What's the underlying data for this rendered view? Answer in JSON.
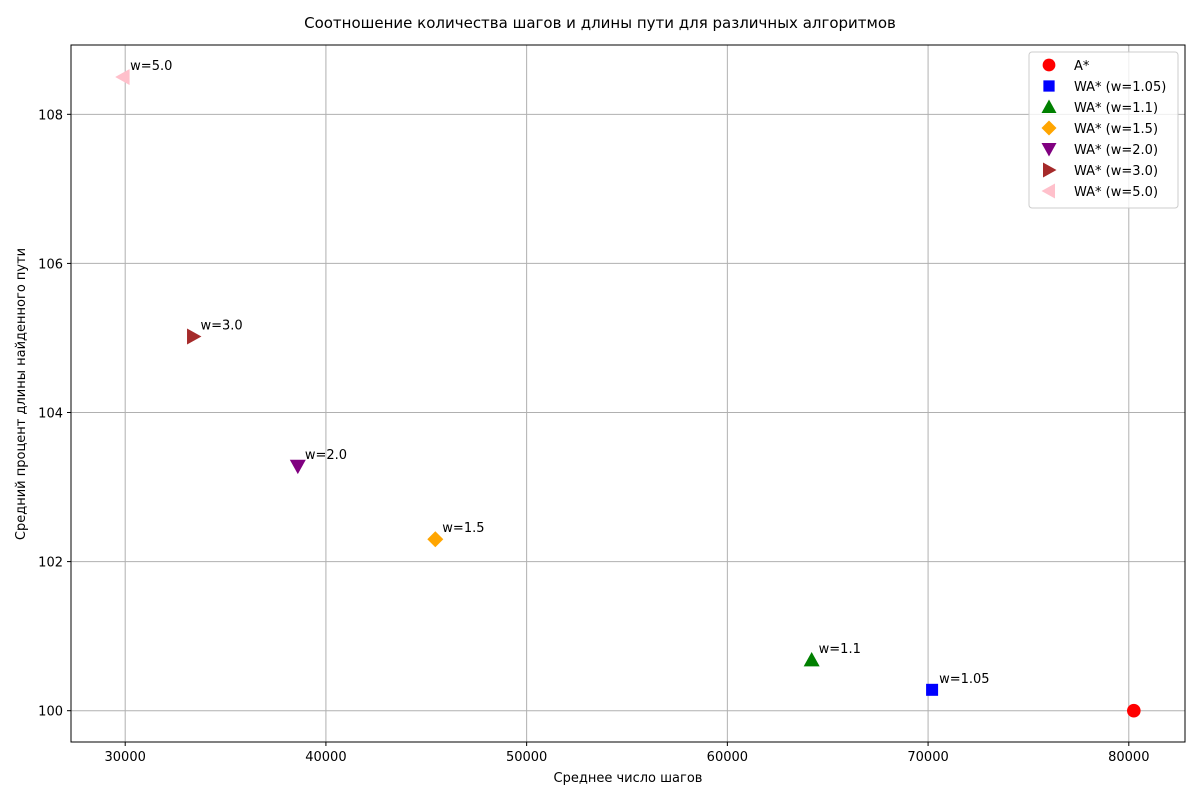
{
  "chart_data": {
    "type": "scatter",
    "title": "Соотношение количества шагов и длины пути для различных алгоритмов",
    "xlabel": "Среднее число шагов",
    "ylabel": "Средний процент длины найденного пути",
    "xlim": [
      27300,
      82800
    ],
    "ylim": [
      99.58,
      108.93
    ],
    "xticks": [
      30000,
      40000,
      50000,
      60000,
      70000,
      80000
    ],
    "yticks": [
      100,
      102,
      104,
      106,
      108
    ],
    "grid": true,
    "legend_position": "top-right",
    "series": [
      {
        "name": "A*",
        "marker": "circle",
        "color": "#ff0000",
        "x": 80250,
        "y": 100.0,
        "annotation": ""
      },
      {
        "name": "WA* (w=1.05)",
        "marker": "square",
        "color": "#0000ff",
        "x": 70200,
        "y": 100.28,
        "annotation": "w=1.05"
      },
      {
        "name": "WA* (w=1.1)",
        "marker": "triangle-up",
        "color": "#008000",
        "x": 64200,
        "y": 100.68,
        "annotation": "w=1.1"
      },
      {
        "name": "WA* (w=1.5)",
        "marker": "diamond",
        "color": "#ffa500",
        "x": 45450,
        "y": 102.3,
        "annotation": "w=1.5"
      },
      {
        "name": "WA* (w=2.0)",
        "marker": "triangle-down",
        "color": "#800080",
        "x": 38600,
        "y": 103.28,
        "annotation": "w=2.0"
      },
      {
        "name": "WA* (w=3.0)",
        "marker": "triangle-right",
        "color": "#a52a2a",
        "x": 33400,
        "y": 105.02,
        "annotation": "w=3.0"
      },
      {
        "name": "WA* (w=5.0)",
        "marker": "triangle-left",
        "color": "#ffc0cb",
        "x": 29900,
        "y": 108.5,
        "annotation": "w=5.0"
      }
    ]
  }
}
